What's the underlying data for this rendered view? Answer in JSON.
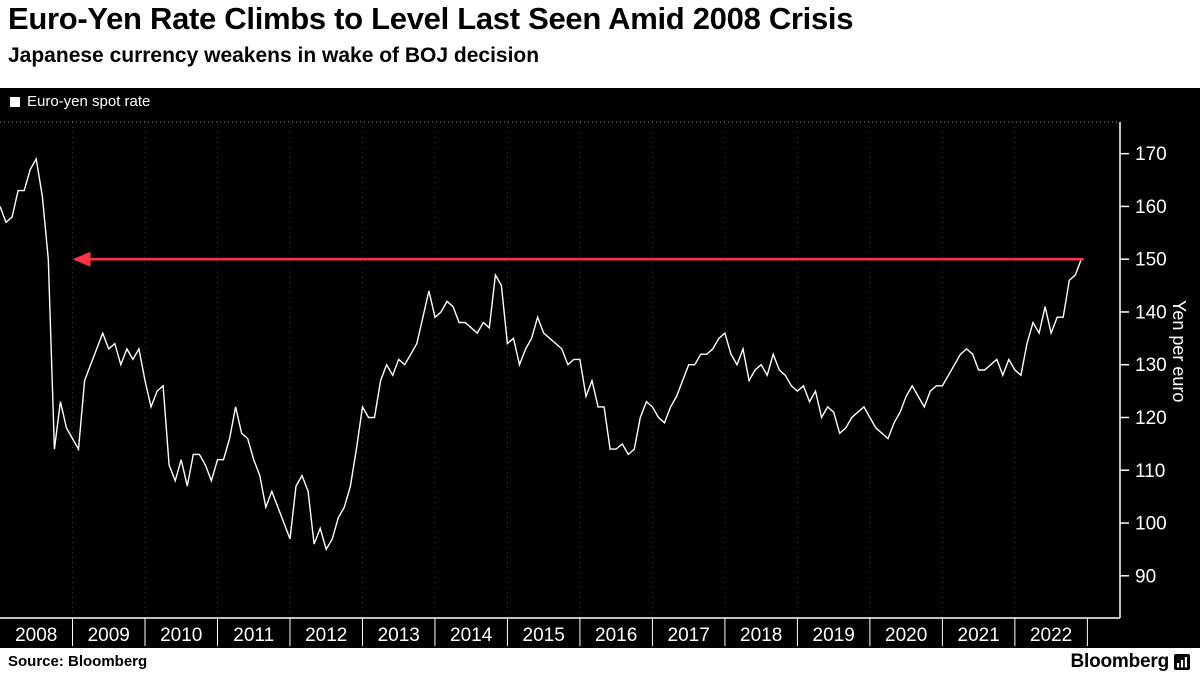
{
  "header": {
    "title": "Euro-Yen Rate Climbs to Level Last Seen Amid 2008 Crisis",
    "subtitle": "Japanese currency weakens in wake of BOJ decision"
  },
  "footer": {
    "source": "Source: Bloomberg",
    "brand": "Bloomberg"
  },
  "colors": {
    "background": "#000000",
    "header_background": "#ffffff",
    "line": "#ffffff",
    "axis": "#ffffff",
    "annotation_red": "#f93246"
  },
  "chart_data": {
    "type": "line",
    "title": "Euro-Yen Rate Climbs to Level Last Seen Amid 2008 Crisis",
    "subtitle": "Japanese currency weakens in wake of BOJ decision",
    "legend": "Euro-yen spot rate",
    "ylabel": "Yen per euro",
    "ylim": [
      82,
      176
    ],
    "yticks": [
      90,
      100,
      110,
      120,
      130,
      140,
      150,
      160,
      170
    ],
    "x_years": [
      2008,
      2009,
      2010,
      2011,
      2012,
      2013,
      2014,
      2015,
      2016,
      2017,
      2018,
      2019,
      2020,
      2021,
      2022
    ],
    "x_start": 2008.0,
    "x_axis_end": 2023.45,
    "x_interval": "monthly",
    "annotation_arrow": {
      "y": 150,
      "x_from": 2022.95,
      "x_to": 2009.0,
      "direction": "left",
      "color": "#f93246"
    },
    "values": [
      160,
      157,
      158,
      163,
      163,
      167,
      169,
      162,
      150,
      114,
      123,
      118,
      116,
      114,
      127,
      130,
      133,
      136,
      133,
      134,
      130,
      133,
      131,
      133,
      127,
      122,
      125,
      126,
      111,
      108,
      112,
      107,
      113,
      113,
      111,
      108,
      112,
      112,
      116,
      122,
      117,
      116,
      112,
      109,
      103,
      106,
      103,
      100,
      97,
      107,
      109,
      106,
      96,
      99,
      95,
      97,
      101,
      103,
      107,
      114,
      122,
      120,
      120,
      127,
      130,
      128,
      131,
      130,
      132,
      134,
      139,
      144,
      139,
      140,
      142,
      141,
      138,
      138,
      137,
      136,
      138,
      137,
      147,
      145,
      134,
      135,
      130,
      133,
      135,
      139,
      136,
      135,
      134,
      133,
      130,
      131,
      131,
      124,
      127,
      122,
      122,
      114,
      114,
      115,
      113,
      114,
      120,
      123,
      122,
      120,
      119,
      122,
      124,
      127,
      130,
      130,
      132,
      132,
      133,
      135,
      136,
      132,
      130,
      133,
      127,
      129,
      130,
      128,
      132,
      129,
      128,
      126,
      125,
      126,
      123,
      125,
      120,
      122,
      121,
      117,
      118,
      120,
      121,
      122,
      120,
      118,
      117,
      116,
      119,
      121,
      124,
      126,
      124,
      122,
      125,
      126,
      126,
      128,
      130,
      132,
      133,
      132,
      129,
      129,
      130,
      131,
      128,
      131,
      129,
      128,
      134,
      138,
      136,
      141,
      136,
      139,
      139,
      146,
      147,
      150
    ]
  }
}
